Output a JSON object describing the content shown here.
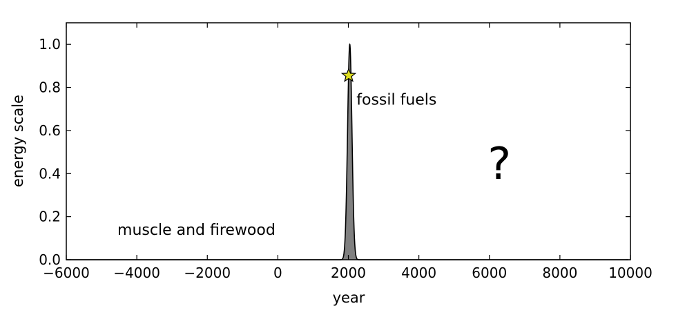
{
  "chart_data": {
    "type": "area",
    "title": "",
    "xlabel": "year",
    "ylabel": "energy scale",
    "xlim": [
      -6000,
      10000
    ],
    "ylim": [
      0,
      1.1
    ],
    "xticks": [
      -6000,
      -4000,
      -2000,
      0,
      2000,
      4000,
      6000,
      8000,
      10000
    ],
    "yticks": [
      0.0,
      0.2,
      0.4,
      0.6,
      0.8,
      1.0
    ],
    "xtick_labels": [
      "−6000",
      "−4000",
      "−2000",
      "0",
      "2000",
      "4000",
      "6000",
      "8000",
      "10000"
    ],
    "ytick_labels": [
      "0.0",
      "0.2",
      "0.4",
      "0.6",
      "0.8",
      "1.0"
    ],
    "grid": false,
    "peak": {
      "x": 2040,
      "y": 1.0,
      "sigma": 62
    },
    "series": [
      {
        "fill": "#808080",
        "x": [
          1700,
          1800,
          1850,
          1900,
          1950,
          1975,
          2000,
          2020,
          2040,
          2060,
          2080,
          2105,
          2130,
          2180,
          2230,
          2280,
          2380
        ],
        "values": [
          0.0,
          0.001,
          0.011,
          0.078,
          0.349,
          0.552,
          0.812,
          0.949,
          1.0,
          0.949,
          0.812,
          0.552,
          0.349,
          0.078,
          0.009,
          0.0,
          0.0
        ]
      }
    ],
    "marker": {
      "x": 2010,
      "y": 0.855,
      "shape": "star",
      "color": "#dede20"
    },
    "annotations": [
      {
        "text": "fossil fuels",
        "x": 2230,
        "y": 0.72
      },
      {
        "text": "muscle and firewood",
        "x": -4550,
        "y": 0.115
      },
      {
        "text": "?",
        "x": 5950,
        "y": 0.375
      }
    ]
  }
}
